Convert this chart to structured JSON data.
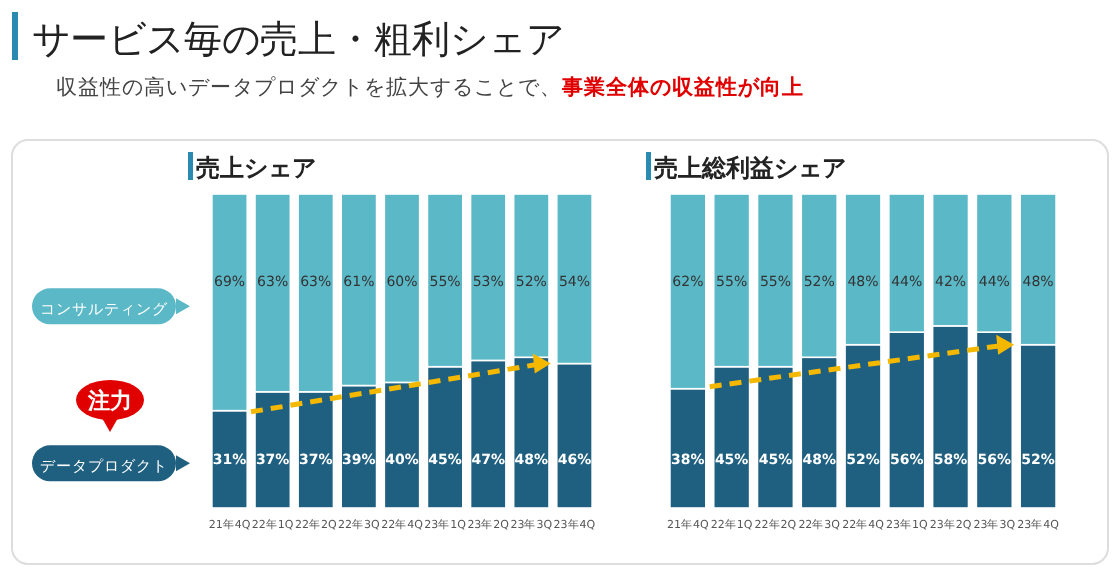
{
  "chart_data": [
    {
      "type": "bar",
      "title": "売上シェア",
      "stacked": true,
      "legend": "left",
      "categories": [
        "21年4Q",
        "22年1Q",
        "22年2Q",
        "22年3Q",
        "22年4Q",
        "23年1Q",
        "23年2Q",
        "23年3Q",
        "23年4Q"
      ],
      "series": [
        {
          "name": "データプロダクト",
          "color": "#1f5f80",
          "values": [
            31,
            37,
            37,
            39,
            40,
            45,
            47,
            48,
            46
          ],
          "value_labels": [
            "31%",
            "37%",
            "37%",
            "39%",
            "40%",
            "45%",
            "47%",
            "48%",
            "46%"
          ]
        },
        {
          "name": "コンサルティング",
          "color": "#5bb8c7",
          "values": [
            69,
            63,
            63,
            61,
            60,
            55,
            53,
            52,
            54
          ],
          "value_labels": [
            "69%",
            "63%",
            "63%",
            "61%",
            "60%",
            "55%",
            "53%",
            "52%",
            "54%"
          ]
        }
      ],
      "annotations": [
        "サービス毎の売上・粗利シェア",
        "収益性の高いデータプロダクトを拡大することで、",
        "事業全体の収益性が向上",
        "注力"
      ]
    },
    {
      "type": "bar",
      "title": "売上総利益シェア",
      "stacked": true,
      "categories": [
        "21年4Q",
        "22年1Q",
        "22年2Q",
        "22年3Q",
        "22年4Q",
        "23年1Q",
        "23年2Q",
        "23年3Q",
        "23年4Q"
      ],
      "series": [
        {
          "color": "#1f5f80",
          "values": [
            38,
            45,
            45,
            48,
            52,
            56,
            58,
            56,
            52
          ],
          "value_labels": [
            "38%",
            "45%",
            "45%",
            "48%",
            "52%",
            "56%",
            "58%",
            "56%",
            "52%"
          ]
        },
        {
          "color": "#5bb8c7",
          "values": [
            62,
            55,
            55,
            52,
            48,
            44,
            42,
            44,
            48
          ],
          "value_labels": [
            "62%",
            "55%",
            "55%",
            "52%",
            "48%",
            "44%",
            "42%",
            "44%",
            "48%"
          ]
        }
      ]
    }
  ]
}
